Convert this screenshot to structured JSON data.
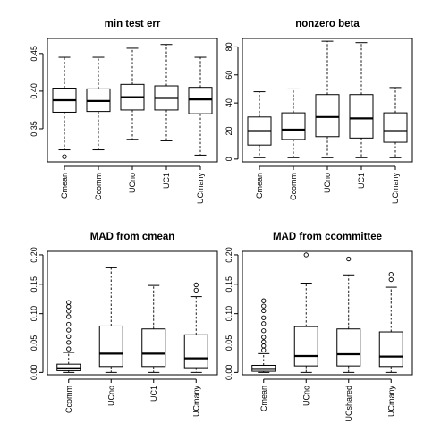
{
  "chart_data": [
    {
      "type": "boxplot",
      "title": "min test err",
      "categories": [
        "Cmean",
        "Ccomm",
        "UCno",
        "UC1",
        "UCmany"
      ],
      "yticks": [
        0.35,
        0.4,
        0.45
      ],
      "ytick_labels": [
        "0.35",
        "0.40",
        "0.45"
      ],
      "ylim": [
        0.306,
        0.47
      ],
      "boxes": [
        {
          "min": 0.322,
          "q1": 0.372,
          "median": 0.388,
          "q3": 0.404,
          "max": 0.445,
          "outliers": [
            0.313
          ]
        },
        {
          "min": 0.322,
          "q1": 0.373,
          "median": 0.387,
          "q3": 0.403,
          "max": 0.445,
          "outliers": []
        },
        {
          "min": 0.336,
          "q1": 0.375,
          "median": 0.392,
          "q3": 0.409,
          "max": 0.457,
          "outliers": []
        },
        {
          "min": 0.334,
          "q1": 0.375,
          "median": 0.391,
          "q3": 0.407,
          "max": 0.462,
          "outliers": []
        },
        {
          "min": 0.315,
          "q1": 0.37,
          "median": 0.389,
          "q3": 0.405,
          "max": 0.445,
          "outliers": []
        }
      ]
    },
    {
      "type": "boxplot",
      "title": "nonzero beta",
      "categories": [
        "Cmean",
        "Ccomm",
        "UCno",
        "UC1",
        "UCmany"
      ],
      "yticks": [
        0,
        20,
        40,
        60,
        80
      ],
      "ytick_labels": [
        "0",
        "20",
        "40",
        "60",
        "80"
      ],
      "ylim": [
        -2,
        86
      ],
      "boxes": [
        {
          "min": 1,
          "q1": 10,
          "median": 20,
          "q3": 30,
          "max": 48,
          "outliers": []
        },
        {
          "min": 1,
          "q1": 14,
          "median": 21,
          "q3": 33,
          "max": 50,
          "outliers": []
        },
        {
          "min": 1,
          "q1": 16,
          "median": 30,
          "q3": 46,
          "max": 84,
          "outliers": []
        },
        {
          "min": 1,
          "q1": 15,
          "median": 29,
          "q3": 46,
          "max": 83,
          "outliers": []
        },
        {
          "min": 1,
          "q1": 12,
          "median": 20,
          "q3": 33,
          "max": 51,
          "outliers": []
        }
      ]
    },
    {
      "type": "boxplot",
      "title": "MAD from cmean",
      "categories": [
        "Ccomm",
        "UCno",
        "UC1",
        "UCmany"
      ],
      "yticks": [
        0.0,
        0.05,
        0.1,
        0.15,
        0.2
      ],
      "ytick_labels": [
        "0.00",
        "0.05",
        "0.10",
        "0.15",
        "0.20"
      ],
      "ylim": [
        -0.004,
        0.206
      ],
      "boxes": [
        {
          "min": 0.0,
          "q1": 0.003,
          "median": 0.007,
          "q3": 0.014,
          "max": 0.034,
          "outliers": [
            0.04,
            0.051,
            0.061,
            0.072,
            0.082,
            0.095,
            0.104,
            0.112,
            0.119
          ]
        },
        {
          "min": 0.0,
          "q1": 0.01,
          "median": 0.032,
          "q3": 0.079,
          "max": 0.178,
          "outliers": []
        },
        {
          "min": 0.0,
          "q1": 0.01,
          "median": 0.032,
          "q3": 0.074,
          "max": 0.148,
          "outliers": []
        },
        {
          "min": 0.0,
          "q1": 0.008,
          "median": 0.024,
          "q3": 0.064,
          "max": 0.129,
          "outliers": [
            0.14,
            0.149
          ]
        }
      ]
    },
    {
      "type": "boxplot",
      "title": "MAD from ccommittee",
      "categories": [
        "Cmean",
        "UCno",
        "UCshared",
        "UCmany"
      ],
      "yticks": [
        0.0,
        0.05,
        0.1,
        0.15,
        0.2
      ],
      "ytick_labels": [
        "0.00",
        "0.05",
        "0.10",
        "0.15",
        "0.20"
      ],
      "ylim": [
        -0.004,
        0.206
      ],
      "boxes": [
        {
          "min": 0.0,
          "q1": 0.002,
          "median": 0.006,
          "q3": 0.012,
          "max": 0.032,
          "outliers": [
            0.038,
            0.045,
            0.052,
            0.06,
            0.071,
            0.083,
            0.093,
            0.105,
            0.113,
            0.122
          ]
        },
        {
          "min": 0.0,
          "q1": 0.011,
          "median": 0.028,
          "q3": 0.078,
          "max": 0.152,
          "outliers": [
            0.2
          ]
        },
        {
          "min": 0.0,
          "q1": 0.011,
          "median": 0.031,
          "q3": 0.074,
          "max": 0.166,
          "outliers": [
            0.193
          ]
        },
        {
          "min": 0.0,
          "q1": 0.01,
          "median": 0.027,
          "q3": 0.069,
          "max": 0.145,
          "outliers": [
            0.158,
            0.167
          ]
        }
      ]
    }
  ]
}
